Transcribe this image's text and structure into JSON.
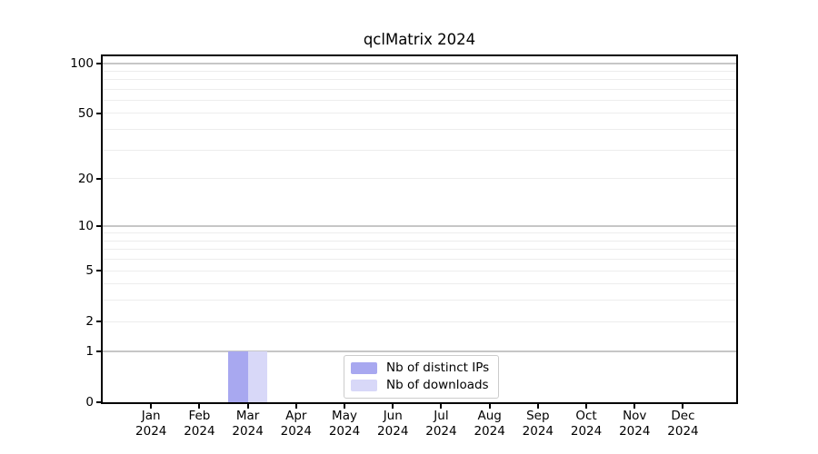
{
  "chart_data": {
    "type": "bar",
    "title": "qclMatrix 2024",
    "x_tick_months": [
      "Jan",
      "Feb",
      "Mar",
      "Apr",
      "May",
      "Jun",
      "Jul",
      "Aug",
      "Sep",
      "Oct",
      "Nov",
      "Dec"
    ],
    "x_tick_year": "2024",
    "categories": [
      "Jan 2024",
      "Feb 2024",
      "Mar 2024",
      "Apr 2024",
      "May 2024",
      "Jun 2024",
      "Jul 2024",
      "Aug 2024",
      "Sep 2024",
      "Oct 2024",
      "Nov 2024",
      "Dec 2024"
    ],
    "series": [
      {
        "name": "Nb of distinct IPs",
        "color": "#a8a8f0",
        "values": [
          0,
          0,
          1,
          0,
          0,
          0,
          0,
          0,
          0,
          0,
          0,
          0
        ]
      },
      {
        "name": "Nb of downloads",
        "color": "#d8d8f8",
        "values": [
          0,
          0,
          1,
          0,
          0,
          0,
          0,
          0,
          0,
          0,
          0,
          0
        ]
      }
    ],
    "y_scale": "log1p",
    "ylim": [
      0,
      110
    ],
    "y_ticks": [
      0,
      1,
      2,
      5,
      10,
      20,
      50,
      100
    ],
    "y_major_gridlines": [
      1,
      10,
      100
    ],
    "y_minor_gridlines": [
      2,
      3,
      4,
      5,
      6,
      7,
      8,
      9,
      20,
      30,
      40,
      50,
      60,
      70,
      80,
      90
    ],
    "grid": true,
    "legend_position": "bottom-center"
  },
  "colors": {
    "axis": "#000000",
    "major_grid": "#c6c6c6",
    "minor_grid": "#ededed",
    "bar_distinct_ips": "#a8a8f0",
    "bar_downloads": "#d8d8f8",
    "legend_border": "#cccccc"
  }
}
